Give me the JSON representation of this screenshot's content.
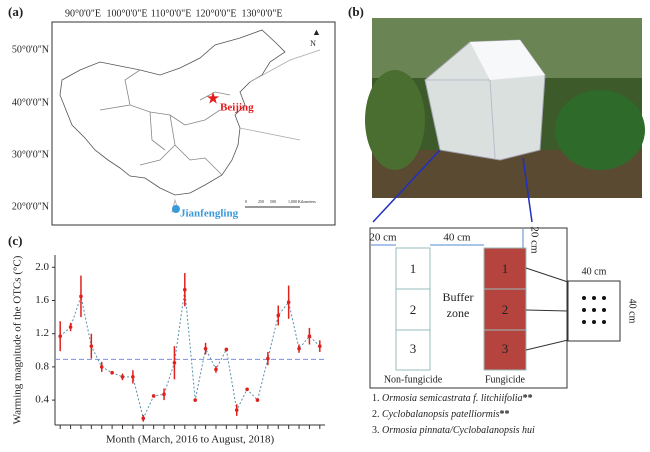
{
  "map": {
    "panel_label": "(a)",
    "lon_labels": [
      "90°0'0\"E",
      "100°0'0\"E",
      "110°0'0\"E",
      "120°0'0\"E",
      "130°0'0\"E"
    ],
    "lat_labels": [
      "50°0'0\"N",
      "40°0'0\"N",
      "30°0'0\"N",
      "20°0'0\"N"
    ],
    "north": "N",
    "city": "Beijing",
    "site": "Jianfengling",
    "scale_ticks": [
      "0",
      "250",
      "500",
      "1,000 Kilometers"
    ]
  },
  "photo": {
    "panel_label": "(b)"
  },
  "diagram": {
    "left_margin": "20 cm",
    "gap": "40 cm",
    "top_margin": "20 cm",
    "control_cells": [
      "1",
      "2",
      "3"
    ],
    "treated_cells": [
      "1",
      "2",
      "3"
    ],
    "buffer": [
      "Buffer",
      "zone"
    ],
    "control_label": "Non-fungicide",
    "treated_label": "Fungicide",
    "quadrat_width": "40 cm",
    "quadrat_height": "40 cm",
    "species": [
      [
        "1.",
        "Ormosia semicastrata f. litchiifolia",
        "**"
      ],
      [
        "2.",
        "Cyclobalanopsis patelliormis",
        "**"
      ],
      [
        "3.",
        "Ormosia pinnata/Cyclobalanopsis hui"
      ]
    ]
  },
  "chart_data": {
    "type": "errorbar",
    "panel_label": "(c)",
    "x_label": "Month (March, 2016 to August, 2018)",
    "y_label": "Warming magnitude of the OTCs (°C)",
    "categories": [
      null,
      null,
      null,
      null,
      null,
      null,
      null,
      null,
      null,
      null,
      null,
      null,
      null,
      null,
      null,
      null,
      null,
      null,
      null,
      null,
      null,
      null,
      null,
      null,
      null,
      null
    ],
    "values": [
      1.17,
      1.28,
      1.65,
      1.05,
      0.8,
      0.73,
      0.68,
      0.68,
      0.18,
      0.45,
      0.47,
      0.85,
      1.73,
      0.4,
      1.02,
      0.77,
      1.01,
      0.28,
      0.53,
      0.4,
      0.9,
      1.42,
      1.58,
      1.02,
      1.17,
      1.05
    ],
    "errors": [
      0.18,
      0.05,
      0.25,
      0.15,
      0.06,
      0.02,
      0.04,
      0.08,
      0.04,
      0.01,
      0.07,
      0.2,
      0.2,
      0.02,
      0.07,
      0.04,
      0.02,
      0.07,
      0.01,
      0.02,
      0.08,
      0.12,
      0.2,
      0.05,
      0.1,
      0.07
    ],
    "color": "#e0201b",
    "line_color": "#5a8fa8",
    "reference_line": 0.89,
    "reference_color": "#7f8fe0",
    "ylim": [
      0.1,
      2.1
    ],
    "yticks": [
      0.4,
      0.8,
      1.2,
      1.6,
      {
        "value": 2,
        "label": "2.0"
      }
    ]
  }
}
